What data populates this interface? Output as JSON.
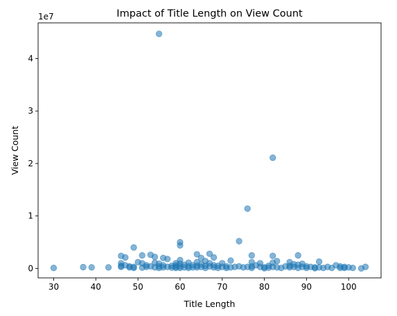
{
  "chart_data": {
    "type": "scatter",
    "title": "Impact of Title Length on View Count",
    "xlabel": "Title Length",
    "ylabel": "View Count",
    "offset_label": "1e7",
    "xlim": [
      26.3,
      107.7
    ],
    "ylim": [
      -1800000,
      46800000
    ],
    "xticks": [
      30,
      40,
      50,
      60,
      70,
      80,
      90,
      100
    ],
    "yticks": [
      0,
      10000000,
      20000000,
      30000000,
      40000000
    ],
    "ytick_labels": [
      "0",
      "1",
      "2",
      "3",
      "4"
    ],
    "grid": false,
    "marker_color": "#1f77b4",
    "marker_alpha": 0.55,
    "points": [
      [
        30,
        100000
      ],
      [
        37,
        250000
      ],
      [
        39,
        200000
      ],
      [
        43,
        200000
      ],
      [
        46,
        2400000
      ],
      [
        46,
        1000000
      ],
      [
        46,
        500000
      ],
      [
        46,
        300000
      ],
      [
        47,
        2100000
      ],
      [
        47,
        600000
      ],
      [
        48,
        400000
      ],
      [
        48,
        200000
      ],
      [
        49,
        4000000
      ],
      [
        49,
        300000
      ],
      [
        49,
        100000
      ],
      [
        50,
        1200000
      ],
      [
        51,
        2500000
      ],
      [
        51,
        1000000
      ],
      [
        51,
        150000
      ],
      [
        52,
        600000
      ],
      [
        52,
        300000
      ],
      [
        53,
        2600000
      ],
      [
        53,
        400000
      ],
      [
        54,
        2200000
      ],
      [
        54,
        1100000
      ],
      [
        54,
        200000
      ],
      [
        55,
        44700000
      ],
      [
        55,
        900000
      ],
      [
        55,
        400000
      ],
      [
        55,
        100000
      ],
      [
        56,
        2000000
      ],
      [
        56,
        600000
      ],
      [
        56,
        200000
      ],
      [
        57,
        1800000
      ],
      [
        57,
        300000
      ],
      [
        58,
        500000
      ],
      [
        58,
        150000
      ],
      [
        59,
        1000000
      ],
      [
        59,
        600000
      ],
      [
        59,
        300000
      ],
      [
        59,
        100000
      ],
      [
        60,
        5000000
      ],
      [
        60,
        4400000
      ],
      [
        60,
        1600000
      ],
      [
        60,
        900000
      ],
      [
        60,
        400000
      ],
      [
        60,
        100000
      ],
      [
        61,
        700000
      ],
      [
        61,
        200000
      ],
      [
        62,
        1100000
      ],
      [
        62,
        400000
      ],
      [
        62,
        100000
      ],
      [
        63,
        600000
      ],
      [
        63,
        200000
      ],
      [
        64,
        2700000
      ],
      [
        64,
        1200000
      ],
      [
        64,
        500000
      ],
      [
        64,
        200000
      ],
      [
        65,
        2000000
      ],
      [
        65,
        800000
      ],
      [
        65,
        300000
      ],
      [
        66,
        1400000
      ],
      [
        66,
        500000
      ],
      [
        66,
        100000
      ],
      [
        67,
        2800000
      ],
      [
        67,
        1000000
      ],
      [
        67,
        400000
      ],
      [
        68,
        2100000
      ],
      [
        68,
        600000
      ],
      [
        68,
        200000
      ],
      [
        69,
        500000
      ],
      [
        69,
        100000
      ],
      [
        70,
        1000000
      ],
      [
        70,
        300000
      ],
      [
        71,
        400000
      ],
      [
        71,
        100000
      ],
      [
        72,
        1500000
      ],
      [
        72,
        200000
      ],
      [
        73,
        300000
      ],
      [
        74,
        5200000
      ],
      [
        74,
        400000
      ],
      [
        75,
        200000
      ],
      [
        76,
        11400000
      ],
      [
        76,
        300000
      ],
      [
        77,
        2500000
      ],
      [
        77,
        1200000
      ],
      [
        77,
        400000
      ],
      [
        77,
        100000
      ],
      [
        78,
        600000
      ],
      [
        79,
        300000
      ],
      [
        79,
        1000000
      ],
      [
        80,
        200000
      ],
      [
        80,
        50000
      ],
      [
        81,
        500000
      ],
      [
        81,
        150000
      ],
      [
        82,
        21100000
      ],
      [
        82,
        2400000
      ],
      [
        82,
        1100000
      ],
      [
        82,
        300000
      ],
      [
        83,
        1400000
      ],
      [
        83,
        200000
      ],
      [
        84,
        100000
      ],
      [
        85,
        400000
      ],
      [
        86,
        1200000
      ],
      [
        86,
        500000
      ],
      [
        86,
        200000
      ],
      [
        87,
        800000
      ],
      [
        87,
        300000
      ],
      [
        88,
        2500000
      ],
      [
        88,
        700000
      ],
      [
        88,
        100000
      ],
      [
        89,
        900000
      ],
      [
        89,
        300000
      ],
      [
        90,
        400000
      ],
      [
        90,
        100000
      ],
      [
        91,
        300000
      ],
      [
        92,
        200000
      ],
      [
        92,
        50000
      ],
      [
        93,
        1300000
      ],
      [
        93,
        200000
      ],
      [
        94,
        100000
      ],
      [
        95,
        300000
      ],
      [
        96,
        100000
      ],
      [
        97,
        600000
      ],
      [
        98,
        400000
      ],
      [
        98,
        100000
      ],
      [
        99,
        300000
      ],
      [
        99,
        100000
      ],
      [
        100,
        200000
      ],
      [
        101,
        100000
      ],
      [
        103,
        0
      ],
      [
        104,
        300000
      ]
    ]
  }
}
